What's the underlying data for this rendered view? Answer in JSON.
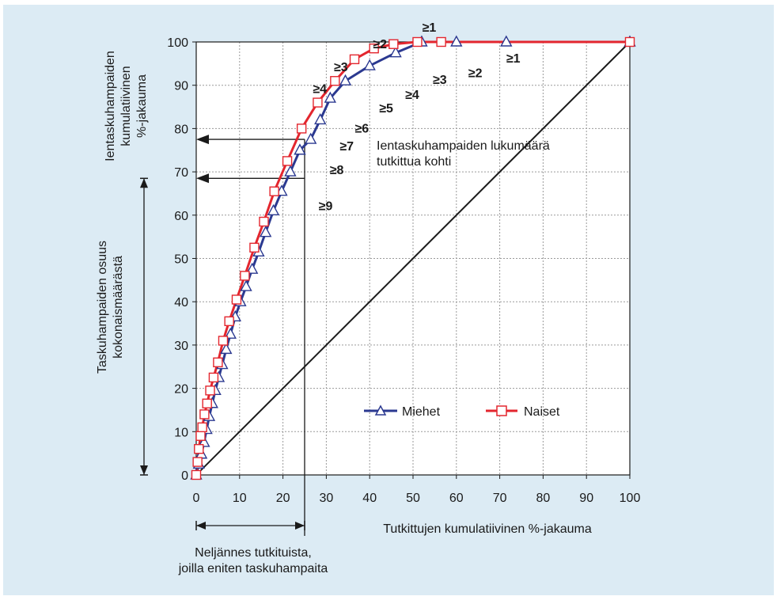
{
  "colors": {
    "background": "#dcebf4",
    "miehet": "#2b3990",
    "naiset": "#e3262e",
    "axis": "#1a1a1a",
    "grid": "#9a9a9a"
  },
  "chart_data": {
    "type": "line",
    "title": "",
    "xlabel": "Tutkittujen kumulatiivinen %-jakauma",
    "ylabel_top": [
      "Ientaskuhampaiden",
      "kumulatiivinen",
      "%-jakauma"
    ],
    "ylabel_left": [
      "Taskuhampaiden osuus",
      "kokonaismäärästä"
    ],
    "xlim": [
      0,
      100
    ],
    "ylim": [
      0,
      100
    ],
    "xticks": [
      "0",
      "10",
      "20",
      "30",
      "40",
      "50",
      "60",
      "70",
      "80",
      "90",
      "100"
    ],
    "yticks": [
      "0",
      "10",
      "20",
      "30",
      "40",
      "50",
      "60",
      "70",
      "80",
      "90",
      "100"
    ],
    "grid": true,
    "legend_position": "bottom-right",
    "series": [
      {
        "name": "Miehet",
        "marker": "triangle",
        "x": [
          0,
          0.6,
          1.2,
          1.8,
          2.4,
          3.0,
          3.7,
          4.4,
          5.2,
          6.0,
          6.9,
          7.9,
          9.0,
          10.2,
          11.5,
          12.9,
          14.4,
          16.0,
          17.8,
          19.7,
          21.7,
          23.9,
          26.4,
          28.6,
          30.9,
          34.4,
          40.0,
          46.0,
          52.0,
          60.0,
          71.5,
          100
        ],
        "y": [
          0,
          2.5,
          4.8,
          7.5,
          10.5,
          13.5,
          16.5,
          19.5,
          22.5,
          25.5,
          29.0,
          32.5,
          36.5,
          40.0,
          43.5,
          47.5,
          51.5,
          56.0,
          61.0,
          65.5,
          70.0,
          75.0,
          77.5,
          82.0,
          87.0,
          91.0,
          94.5,
          97.5,
          100,
          100,
          100,
          100
        ]
      },
      {
        "name": "Naiset",
        "marker": "square",
        "x": [
          0,
          0.3,
          0.6,
          1.0,
          1.4,
          1.9,
          2.5,
          3.2,
          4.0,
          5.0,
          6.2,
          7.6,
          9.3,
          11.2,
          13.4,
          15.6,
          18.0,
          21.0,
          24.3,
          28.0,
          32.0,
          36.5,
          41.0,
          45.5,
          51.0,
          56.5,
          100
        ],
        "y": [
          0,
          3.0,
          6.0,
          9.0,
          11.0,
          14.0,
          16.5,
          19.5,
          22.5,
          26.0,
          31.0,
          35.5,
          40.5,
          46.0,
          52.5,
          58.5,
          65.5,
          72.5,
          80.0,
          86.0,
          91.0,
          96.0,
          98.5,
          99.5,
          100,
          100,
          100
        ]
      },
      {
        "name": "",
        "marker": "none",
        "x": [
          0,
          100
        ],
        "y": [
          0,
          100
        ]
      }
    ],
    "point_labels": {
      "miehet": [
        {
          "text": "≥1",
          "x": 71.5,
          "y": 100
        },
        {
          "text": "≥2",
          "x": 60.0,
          "y": 97.5
        },
        {
          "text": "≥3",
          "x": 52.0,
          "y": 94.5
        },
        {
          "text": "≥4",
          "x": 46.0,
          "y": 91.0
        },
        {
          "text": "≥5",
          "x": 40.0,
          "y": 87.0
        },
        {
          "text": "≥6",
          "x": 34.4,
          "y": 82.0
        },
        {
          "text": "≥7",
          "x": 30.9,
          "y": 77.5
        },
        {
          "text": "≥8",
          "x": 28.6,
          "y": 72.0
        },
        {
          "text": "≥9",
          "x": 26.4,
          "y": 65.5
        }
      ],
      "naiset": [
        {
          "text": "≥1",
          "x": 56.5,
          "y": 100
        },
        {
          "text": "≥2",
          "x": 45.5,
          "y": 96.0
        },
        {
          "text": "≥3",
          "x": 36.5,
          "y": 91.0
        },
        {
          "text": "≥4",
          "x": 32.0,
          "y": 86.0
        }
      ]
    },
    "annotations": {
      "inner_text": [
        "Ientaskuhampaiden lukumäärä",
        "tutkittua kohti"
      ],
      "bottom_text": [
        "Neljännes tutkituista,",
        "joilla eniten taskuhampaita"
      ],
      "reference_x": 25,
      "reference_y_naiset": 77.5,
      "reference_y_miehet": 68.5,
      "span_y": [
        0,
        68.5
      ],
      "span_x": [
        0,
        25
      ]
    }
  }
}
